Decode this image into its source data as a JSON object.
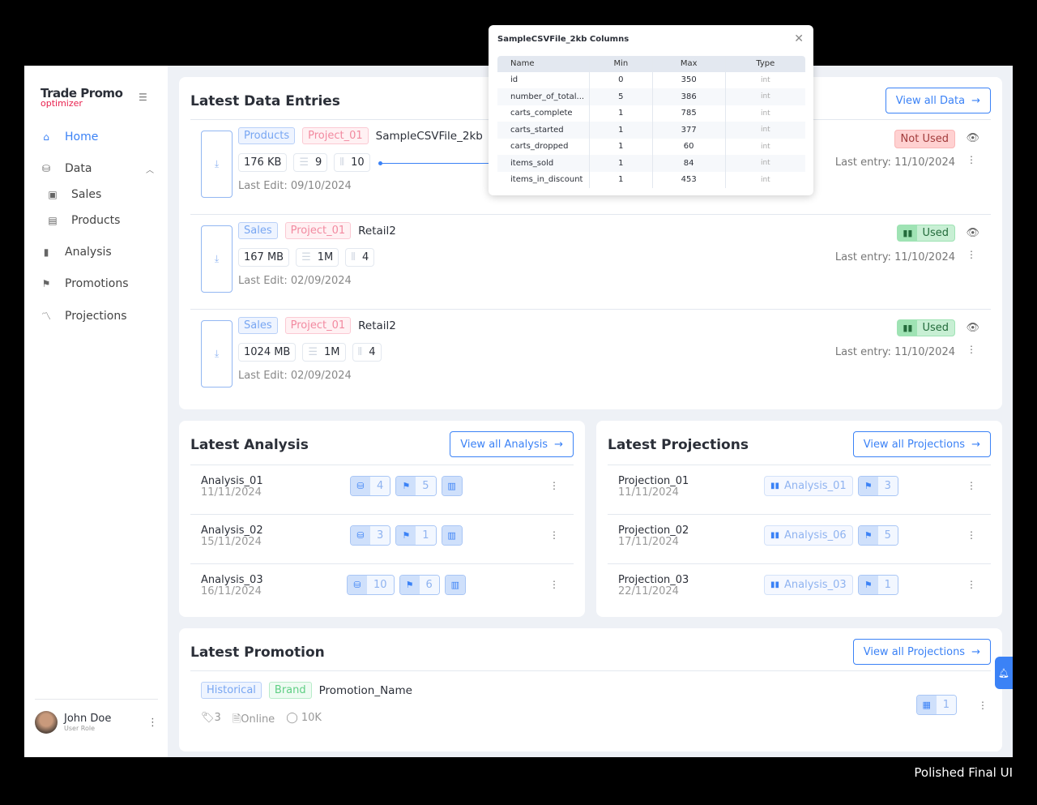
{
  "app": {
    "logo_line1": "Trade Promo",
    "logo_line2": "optimizer",
    "footer_caption": "Polished Final UI"
  },
  "sidebar": {
    "items": [
      {
        "label": "Home",
        "icon": "home-icon"
      },
      {
        "label": "Data",
        "icon": "database-icon"
      },
      {
        "label": "Sales",
        "icon": "money-icon"
      },
      {
        "label": "Products",
        "icon": "box-icon"
      },
      {
        "label": "Analysis",
        "icon": "bar-chart-icon"
      },
      {
        "label": "Promotions",
        "icon": "flag-icon"
      },
      {
        "label": "Projections",
        "icon": "trend-search-icon"
      }
    ],
    "user": {
      "name": "John Doe",
      "role": "User Role"
    }
  },
  "data_entries": {
    "title": "Latest Data Entries",
    "view_all": "View all Data",
    "rows": [
      {
        "tag1": "Products",
        "tag2": "Project_01",
        "name": "SampleCSVFile_2kb",
        "size": "176 KB",
        "rows": "9",
        "cols": "10",
        "last_edit": "Last Edit: 09/10/2024",
        "status": "Not Used",
        "last_entry": "Last entry: 11/10/2024"
      },
      {
        "tag1": "Sales",
        "tag2": "Project_01",
        "name": "Retail2",
        "size": "167 MB",
        "rows": "1M",
        "cols": "4",
        "last_edit": "Last Edit: 02/09/2024",
        "status": "Used",
        "last_entry": "Last entry: 11/10/2024"
      },
      {
        "tag1": "Sales",
        "tag2": "Project_01",
        "name": "Retail2",
        "size": "1024 MB",
        "rows": "1M",
        "cols": "4",
        "last_edit": "Last Edit: 02/09/2024",
        "status": "Used",
        "last_entry": "Last entry: 11/10/2024"
      }
    ]
  },
  "popup": {
    "title": "SampleCSVFile_2kb Columns",
    "headers": [
      "Name",
      "Min",
      "Max",
      "Type"
    ],
    "rows": [
      [
        "id",
        "0",
        "350",
        "int"
      ],
      [
        "number_of_total...",
        "5",
        "386",
        "int"
      ],
      [
        "carts_complete",
        "1",
        "785",
        "int"
      ],
      [
        "carts_started",
        "1",
        "377",
        "int"
      ],
      [
        "carts_dropped",
        "1",
        "60",
        "int"
      ],
      [
        "items_sold",
        "1",
        "84",
        "int"
      ],
      [
        "items_in_discount",
        "1",
        "453",
        "int"
      ]
    ]
  },
  "analysis": {
    "title": "Latest Analysis",
    "view_all": "View all Analysis",
    "rows": [
      {
        "name": "Analysis_01",
        "date": "11/11/2024",
        "data": "4",
        "promos": "5"
      },
      {
        "name": "Analysis_02",
        "date": "15/11/2024",
        "data": "3",
        "promos": "1"
      },
      {
        "name": "Analysis_03",
        "date": "16/11/2024",
        "data": "10",
        "promos": "6"
      }
    ]
  },
  "projections": {
    "title": "Latest Projections",
    "view_all": "View all Projections",
    "rows": [
      {
        "name": "Projection_01",
        "date": "11/11/2024",
        "analysis": "Analysis_01",
        "promos": "3"
      },
      {
        "name": "Projection_02",
        "date": "17/11/2024",
        "analysis": "Analysis_06",
        "promos": "5"
      },
      {
        "name": "Projection_03",
        "date": "22/11/2024",
        "analysis": "Analysis_03",
        "promos": "1"
      }
    ]
  },
  "promotion": {
    "title": "Latest Promotion",
    "view_all": "View all Projections",
    "tag1": "Historical",
    "tag2": "Brand",
    "name": "Promotion_Name",
    "tags_count": "3",
    "channel": "Online",
    "reach": "10K",
    "calendar_count": "1"
  },
  "colors": {
    "accent": "#3b82f6",
    "brand": "#e8214e",
    "not_used": "#ffd1d1",
    "used": "#c8efd4"
  }
}
